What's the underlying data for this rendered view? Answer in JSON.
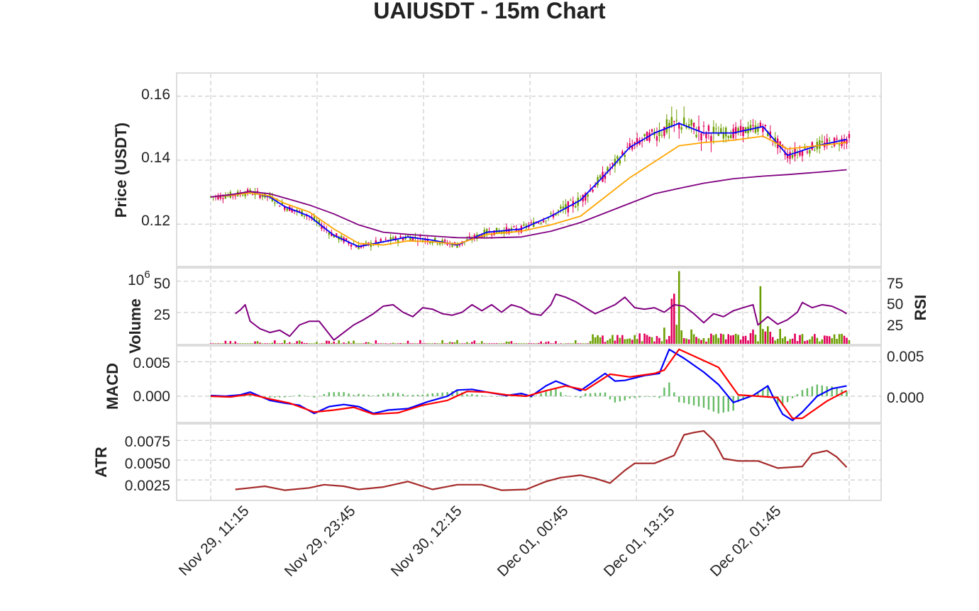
{
  "chart_data": {
    "title": "UAIUSDT - 15m Chart",
    "x_ticks": [
      "Nov 29, 11:15",
      "Nov 29, 23:45",
      "Nov 30, 12:15",
      "Dec 01, 00:45",
      "Dec 01, 13:15",
      "Dec 02, 01:45"
    ],
    "grid": true,
    "panels": [
      {
        "id": "price",
        "type": "candlestick",
        "ylabel": "Price (USDT)",
        "yticks": [
          "0.12",
          "0.14",
          "0.16"
        ],
        "ylim": [
          0.107,
          0.167
        ],
        "up_color": "#6b9e00",
        "down_color": "#e0005c",
        "moving_averages": [
          {
            "color": "#0000ff",
            "points": [
              [
                0,
                0.1285
              ],
              [
                8,
                0.129
              ],
              [
                16,
                0.13
              ],
              [
                24,
                0.1285
              ],
              [
                30,
                0.1255
              ],
              [
                40,
                0.1225
              ],
              [
                50,
                0.1165
              ],
              [
                60,
                0.113
              ],
              [
                70,
                0.1145
              ],
              [
                80,
                0.116
              ],
              [
                90,
                0.115
              ],
              [
                100,
                0.1135
              ],
              [
                112,
                0.1175
              ],
              [
                126,
                0.1185
              ],
              [
                138,
                0.1225
              ],
              [
                150,
                0.1275
              ],
              [
                160,
                0.1355
              ],
              [
                170,
                0.144
              ],
              [
                180,
                0.1485
              ],
              [
                190,
                0.1515
              ],
              [
                200,
                0.1485
              ],
              [
                212,
                0.1485
              ],
              [
                224,
                0.1505
              ],
              [
                234,
                0.1415
              ],
              [
                246,
                0.1445
              ],
              [
                258,
                0.1465
              ]
            ]
          },
          {
            "color": "#ffa500",
            "points": [
              [
                0,
                0.1285
              ],
              [
                8,
                0.129
              ],
              [
                16,
                0.1298
              ],
              [
                24,
                0.1288
              ],
              [
                30,
                0.1265
              ],
              [
                40,
                0.1238
              ],
              [
                50,
                0.1185
              ],
              [
                60,
                0.114
              ],
              [
                70,
                0.1135
              ],
              [
                80,
                0.1148
              ],
              [
                90,
                0.1145
              ],
              [
                100,
                0.1138
              ],
              [
                112,
                0.1168
              ],
              [
                126,
                0.1178
              ],
              [
                138,
                0.1198
              ],
              [
                150,
                0.1225
              ],
              [
                170,
                0.1345
              ],
              [
                180,
                0.1395
              ],
              [
                190,
                0.1445
              ],
              [
                200,
                0.1455
              ],
              [
                212,
                0.1462
              ],
              [
                224,
                0.1475
              ],
              [
                234,
                0.1435
              ],
              [
                246,
                0.1445
              ],
              [
                258,
                0.1455
              ]
            ]
          },
          {
            "color": "#800080",
            "points": [
              [
                0,
                0.1285
              ],
              [
                8,
                0.1292
              ],
              [
                16,
                0.1302
              ],
              [
                24,
                0.1295
              ],
              [
                30,
                0.1282
              ],
              [
                40,
                0.126
              ],
              [
                50,
                0.1232
              ],
              [
                60,
                0.1198
              ],
              [
                70,
                0.1175
              ],
              [
                80,
                0.1168
              ],
              [
                90,
                0.1163
              ],
              [
                100,
                0.1158
              ],
              [
                112,
                0.1157
              ],
              [
                126,
                0.116
              ],
              [
                138,
                0.1178
              ],
              [
                150,
                0.1205
              ],
              [
                170,
                0.1265
              ],
              [
                180,
                0.1295
              ],
              [
                190,
                0.1312
              ],
              [
                200,
                0.1328
              ],
              [
                212,
                0.1342
              ],
              [
                224,
                0.135
              ],
              [
                234,
                0.1355
              ],
              [
                246,
                0.1362
              ],
              [
                258,
                0.137
              ]
            ]
          }
        ]
      },
      {
        "id": "volume",
        "type": "bar",
        "ylabel": "Volume",
        "scale_label": "10",
        "scale_exp": "6",
        "yticks": [
          "25",
          "50"
        ],
        "ylim": [
          0,
          60
        ],
        "rsi": {
          "label": "RSI",
          "yticks": [
            "25",
            "50",
            "75"
          ],
          "ylim": [
            0,
            100
          ],
          "color": "#800080",
          "points": [
            [
              10,
              40
            ],
            [
              12,
              45
            ],
            [
              14,
              52
            ],
            [
              16,
              30
            ],
            [
              18,
              25
            ],
            [
              20,
              20
            ],
            [
              24,
              15
            ],
            [
              28,
              18
            ],
            [
              32,
              10
            ],
            [
              36,
              25
            ],
            [
              40,
              30
            ],
            [
              44,
              30
            ],
            [
              50,
              5
            ],
            [
              54,
              15
            ],
            [
              58,
              25
            ],
            [
              62,
              32
            ],
            [
              66,
              40
            ],
            [
              70,
              50
            ],
            [
              74,
              52
            ],
            [
              78,
              42
            ],
            [
              82,
              36
            ],
            [
              86,
              48
            ],
            [
              90,
              46
            ],
            [
              94,
              40
            ],
            [
              98,
              38
            ],
            [
              102,
              42
            ],
            [
              106,
              52
            ],
            [
              110,
              44
            ],
            [
              114,
              52
            ],
            [
              118,
              42
            ],
            [
              122,
              52
            ],
            [
              126,
              48
            ],
            [
              130,
              40
            ],
            [
              134,
              38
            ],
            [
              138,
              52
            ],
            [
              140,
              66
            ],
            [
              144,
              62
            ],
            [
              148,
              56
            ],
            [
              152,
              48
            ],
            [
              156,
              40
            ],
            [
              160,
              46
            ],
            [
              164,
              52
            ],
            [
              168,
              62
            ],
            [
              172,
              48
            ],
            [
              176,
              46
            ],
            [
              180,
              48
            ],
            [
              184,
              42
            ],
            [
              188,
              52
            ],
            [
              192,
              50
            ],
            [
              196,
              40
            ],
            [
              200,
              28
            ],
            [
              204,
              40
            ],
            [
              208,
              36
            ],
            [
              212,
              44
            ],
            [
              216,
              48
            ],
            [
              220,
              52
            ],
            [
              222,
              25
            ],
            [
              226,
              36
            ],
            [
              230,
              26
            ],
            [
              234,
              32
            ],
            [
              238,
              42
            ],
            [
              240,
              55
            ],
            [
              244,
              48
            ],
            [
              248,
              52
            ],
            [
              252,
              50
            ],
            [
              256,
              44
            ],
            [
              258,
              40
            ]
          ]
        }
      },
      {
        "id": "macd",
        "type": "line",
        "ylabel": "MACD",
        "yticks": [
          "0.000",
          "0.005"
        ],
        "right_yticks": [
          "0.000",
          "0.005"
        ],
        "ylim": [
          -0.0037,
          0.0072
        ],
        "macd_color": "#0000ff",
        "signal_color": "#ff0000",
        "histogram_color": "#66bb66",
        "macd": [
          [
            0,
            0.0001
          ],
          [
            6,
            0.0
          ],
          [
            12,
            0.0002
          ],
          [
            16,
            0.0006
          ],
          [
            20,
            0.0
          ],
          [
            24,
            -0.0006
          ],
          [
            30,
            -0.001
          ],
          [
            36,
            -0.0013
          ],
          [
            42,
            -0.0025
          ],
          [
            48,
            -0.0015
          ],
          [
            54,
            -0.0012
          ],
          [
            60,
            -0.0015
          ],
          [
            66,
            -0.0025
          ],
          [
            72,
            -0.002
          ],
          [
            80,
            -0.0018
          ],
          [
            88,
            -0.0008
          ],
          [
            96,
            0.0
          ],
          [
            100,
            0.0009
          ],
          [
            106,
            0.001
          ],
          [
            112,
            0.0006
          ],
          [
            120,
            0.0001
          ],
          [
            126,
            0.0004
          ],
          [
            130,
            0.0
          ],
          [
            136,
            0.0015
          ],
          [
            140,
            0.0022
          ],
          [
            150,
            0.0008
          ],
          [
            160,
            0.0033
          ],
          [
            164,
            0.0022
          ],
          [
            168,
            0.0023
          ],
          [
            176,
            0.003
          ],
          [
            182,
            0.0033
          ],
          [
            186,
            0.0068
          ],
          [
            192,
            0.0055
          ],
          [
            200,
            0.0035
          ],
          [
            206,
            0.0017
          ],
          [
            212,
            -0.0009
          ],
          [
            220,
            0.0001
          ],
          [
            226,
            0.0015
          ],
          [
            228,
            0.0
          ],
          [
            232,
            -0.0026
          ],
          [
            236,
            -0.0035
          ],
          [
            240,
            -0.0023
          ],
          [
            246,
            0.0
          ],
          [
            252,
            0.0011
          ],
          [
            258,
            0.0015
          ]
        ],
        "signal": [
          [
            0,
            0.0
          ],
          [
            8,
            -0.0001
          ],
          [
            16,
            0.0003
          ],
          [
            24,
            -0.0004
          ],
          [
            32,
            -0.001
          ],
          [
            42,
            -0.0023
          ],
          [
            50,
            -0.002
          ],
          [
            58,
            -0.0016
          ],
          [
            66,
            -0.0026
          ],
          [
            76,
            -0.0024
          ],
          [
            86,
            -0.0013
          ],
          [
            96,
            -0.0006
          ],
          [
            104,
            0.0007
          ],
          [
            112,
            0.0006
          ],
          [
            120,
            0.0002
          ],
          [
            128,
            0.0
          ],
          [
            136,
            0.0008
          ],
          [
            144,
            0.0015
          ],
          [
            152,
            0.0009
          ],
          [
            162,
            0.0032
          ],
          [
            170,
            0.0028
          ],
          [
            180,
            0.0033
          ],
          [
            184,
            0.0038
          ],
          [
            190,
            0.0068
          ],
          [
            198,
            0.0055
          ],
          [
            206,
            0.0042
          ],
          [
            214,
            0.0002
          ],
          [
            222,
            0.0
          ],
          [
            230,
            -0.0002
          ],
          [
            236,
            -0.0032
          ],
          [
            240,
            -0.0032
          ],
          [
            250,
            -0.0007
          ],
          [
            258,
            0.0008
          ]
        ]
      },
      {
        "id": "atr",
        "type": "line",
        "ylabel": "ATR",
        "yticks": [
          "0.0025",
          "0.0050",
          "0.0075"
        ],
        "ylim": [
          0,
          0.0095
        ],
        "color": "#a52a2a",
        "points": [
          [
            10,
            0.0013
          ],
          [
            16,
            0.0015
          ],
          [
            22,
            0.0017
          ],
          [
            30,
            0.0012
          ],
          [
            40,
            0.0015
          ],
          [
            46,
            0.0019
          ],
          [
            54,
            0.0017
          ],
          [
            60,
            0.0013
          ],
          [
            70,
            0.0016
          ],
          [
            80,
            0.0023
          ],
          [
            90,
            0.0013
          ],
          [
            100,
            0.0019
          ],
          [
            110,
            0.0019
          ],
          [
            118,
            0.0012
          ],
          [
            128,
            0.0013
          ],
          [
            136,
            0.0023
          ],
          [
            142,
            0.0028
          ],
          [
            150,
            0.0031
          ],
          [
            156,
            0.0027
          ],
          [
            162,
            0.0021
          ],
          [
            168,
            0.0037
          ],
          [
            172,
            0.0046
          ],
          [
            180,
            0.0046
          ],
          [
            188,
            0.0056
          ],
          [
            192,
            0.0082
          ],
          [
            196,
            0.0085
          ],
          [
            200,
            0.0087
          ],
          [
            204,
            0.0075
          ],
          [
            208,
            0.0052
          ],
          [
            214,
            0.0049
          ],
          [
            222,
            0.0049
          ],
          [
            230,
            0.004
          ],
          [
            240,
            0.0042
          ],
          [
            244,
            0.0058
          ],
          [
            250,
            0.0062
          ],
          [
            254,
            0.0054
          ],
          [
            258,
            0.0041
          ]
        ]
      }
    ]
  }
}
